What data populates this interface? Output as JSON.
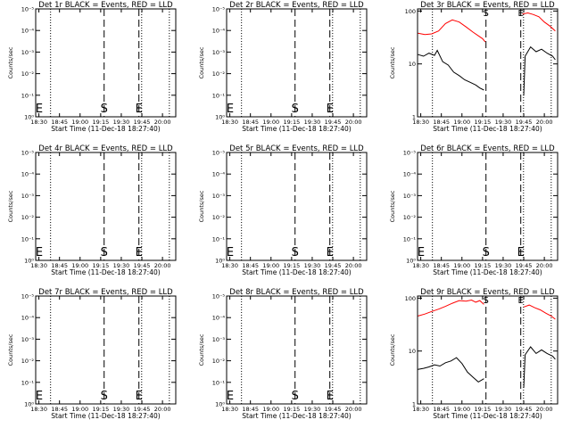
{
  "figure": {
    "xlabel": "Start Time (11-Dec-18 18:27:40)",
    "ylabel": "Counts/sec",
    "x_range": [
      "18:27:40",
      "20:09:40"
    ],
    "x_ticks": [
      "18:30",
      "18:45",
      "19:00",
      "19:15",
      "19:30",
      "19:45",
      "20:00"
    ],
    "vlines": [
      {
        "kind": "dotted",
        "time": "18:38:30"
      },
      {
        "kind": "dashed",
        "time": "19:17:30",
        "marker": "S"
      },
      {
        "kind": "dashed",
        "time": "19:42:50",
        "marker": "E"
      },
      {
        "kind": "dotted",
        "time": "19:44:50"
      },
      {
        "kind": "dotted",
        "time": "20:05:00"
      }
    ],
    "colors": {
      "events": "#000000",
      "lld": "#ff0000",
      "axes": "#000000"
    }
  },
  "chart_data": [
    {
      "type": "line",
      "title": "Det 1r BLACK = Events, RED = LLD",
      "ylabel": "Counts/sec",
      "xlabel": "Start Time (11-Dec-18 18:27:40)",
      "yscale": "log",
      "y_ticks": [
        "10⁰",
        "10⁻¹",
        "10⁻²",
        "10⁻³",
        "10⁻⁴",
        "10⁻⁵"
      ],
      "y_tick_exponents": [
        0,
        -1,
        -2,
        -3,
        -4,
        -5
      ],
      "ylim_exp": [
        0,
        -5
      ],
      "series": []
    },
    {
      "type": "line",
      "title": "Det 2r BLACK = Events, RED = LLD",
      "ylabel": "Counts/sec",
      "xlabel": "Start Time (11-Dec-18 18:27:40)",
      "yscale": "log",
      "y_ticks": [
        "10⁰",
        "10⁻¹",
        "10⁻²",
        "10⁻³",
        "10⁻⁴",
        "10⁻⁵"
      ],
      "y_tick_exponents": [
        0,
        -1,
        -2,
        -3,
        -4,
        -5
      ],
      "ylim_exp": [
        0,
        -5
      ],
      "series": []
    },
    {
      "type": "line",
      "title": "Det 3r BLACK = Events, RED = LLD",
      "ylabel": "Counts/sec",
      "xlabel": "Start Time (11-Dec-18 18:27:40)",
      "yscale": "log",
      "y_ticks": [
        "1",
        "10",
        "100"
      ],
      "y_tick_exponents": [
        0,
        1,
        2
      ],
      "ylim_exp": [
        0,
        2.04
      ],
      "series": [
        {
          "color": "#ff0000",
          "segments": [
            {
              "x": [
                "18:28",
                "18:33",
                "18:38",
                "18:43",
                "18:48",
                "18:53",
                "18:58",
                "19:03",
                "19:08",
                "19:12",
                "19:15",
                "19:17"
              ],
              "y": [
                38,
                36,
                37,
                42,
                58,
                68,
                62,
                50,
                40,
                34,
                30,
                26
              ]
            },
            {
              "x": [
                "19:44",
                "19:48",
                "19:52",
                "19:56",
                "20:00",
                "20:04",
                "20:08"
              ],
              "y": [
                88,
                92,
                86,
                78,
                62,
                52,
                42
              ]
            }
          ]
        },
        {
          "color": "#000000",
          "segments": [
            {
              "x": [
                "18:28",
                "18:32",
                "18:36",
                "18:40",
                "18:42",
                "18:46",
                "18:50",
                "18:54",
                "18:58",
                "19:02",
                "19:06",
                "19:10",
                "19:13",
                "19:16"
              ],
              "y": [
                15,
                14,
                16,
                14.5,
                18,
                11,
                9.5,
                7,
                6,
                5,
                4.5,
                4,
                3.5,
                3.2
              ]
            },
            {
              "x": [
                "19:45",
                "19:46",
                "19:50",
                "19:54",
                "19:58",
                "20:02",
                "20:06",
                "20:08"
              ],
              "y": [
                2.5,
                14,
                21,
                17,
                19,
                16,
                14,
                12
              ]
            }
          ]
        }
      ]
    },
    {
      "type": "line",
      "title": "Det 4r BLACK = Events, RED = LLD",
      "ylabel": "Counts/sec",
      "xlabel": "Start Time (11-Dec-18 18:27:40)",
      "yscale": "log",
      "y_ticks": [
        "10⁰",
        "10⁻¹",
        "10⁻²",
        "10⁻³",
        "10⁻⁴",
        "10⁻⁵"
      ],
      "y_tick_exponents": [
        0,
        -1,
        -2,
        -3,
        -4,
        -5
      ],
      "ylim_exp": [
        0,
        -5
      ],
      "series": []
    },
    {
      "type": "line",
      "title": "Det 5r BLACK = Events, RED = LLD",
      "ylabel": "Counts/sec",
      "xlabel": "Start Time (11-Dec-18 18:27:40)",
      "yscale": "log",
      "y_ticks": [
        "10⁰",
        "10⁻¹",
        "10⁻²",
        "10⁻³",
        "10⁻⁴",
        "10⁻⁵"
      ],
      "y_tick_exponents": [
        0,
        -1,
        -2,
        -3,
        -4,
        -5
      ],
      "ylim_exp": [
        0,
        -5
      ],
      "series": []
    },
    {
      "type": "line",
      "title": "Det 6r BLACK = Events, RED = LLD",
      "ylabel": "Counts/sec",
      "xlabel": "Start Time (11-Dec-18 18:27:40)",
      "yscale": "log",
      "y_ticks": [
        "10⁰",
        "10⁻¹",
        "10⁻²",
        "10⁻³",
        "10⁻⁴",
        "10⁻⁵"
      ],
      "y_tick_exponents": [
        0,
        -1,
        -2,
        -3,
        -4,
        -5
      ],
      "ylim_exp": [
        0,
        -5
      ],
      "series": []
    },
    {
      "type": "line",
      "title": "Det 7r BLACK = Events, RED = LLD",
      "ylabel": "Counts/sec",
      "xlabel": "Start Time (11-Dec-18 18:27:40)",
      "yscale": "log",
      "y_ticks": [
        "10⁰",
        "10⁻¹",
        "10⁻²",
        "10⁻³",
        "10⁻⁴",
        "10⁻⁵"
      ],
      "y_tick_exponents": [
        0,
        -1,
        -2,
        -3,
        -4,
        -5
      ],
      "ylim_exp": [
        0,
        -5
      ],
      "series": []
    },
    {
      "type": "line",
      "title": "Det 8r BLACK = Events, RED = LLD",
      "ylabel": "Counts/sec",
      "xlabel": "Start Time (11-Dec-18 18:27:40)",
      "yscale": "log",
      "y_ticks": [
        "10⁰",
        "10⁻¹",
        "10⁻²",
        "10⁻³",
        "10⁻⁴",
        "10⁻⁵"
      ],
      "y_tick_exponents": [
        0,
        -1,
        -2,
        -3,
        -4,
        -5
      ],
      "ylim_exp": [
        0,
        -5
      ],
      "series": []
    },
    {
      "type": "line",
      "title": "Det 9r BLACK = Events, RED = LLD",
      "ylabel": "Counts/sec",
      "xlabel": "Start Time (11-Dec-18 18:27:40)",
      "yscale": "log",
      "y_ticks": [
        "1",
        "10",
        "100"
      ],
      "y_tick_exponents": [
        0,
        1,
        2
      ],
      "ylim_exp": [
        0,
        2.04
      ],
      "series": [
        {
          "color": "#ff0000",
          "segments": [
            {
              "x": [
                "18:28",
                "18:33",
                "18:38",
                "18:43",
                "18:48",
                "18:53",
                "18:58",
                "19:03",
                "19:07",
                "19:10",
                "19:13",
                "19:16"
              ],
              "y": [
                46,
                50,
                56,
                62,
                70,
                80,
                90,
                88,
                92,
                84,
                90,
                76
              ]
            },
            {
              "x": [
                "19:45",
                "19:49",
                "19:53",
                "19:57",
                "20:01",
                "20:05",
                "20:08"
              ],
              "y": [
                68,
                74,
                66,
                60,
                52,
                46,
                40
              ]
            }
          ]
        },
        {
          "color": "#000000",
          "segments": [
            {
              "x": [
                "18:28",
                "18:32",
                "18:36",
                "18:40",
                "18:44",
                "18:48",
                "18:52",
                "18:56",
                "19:00",
                "19:04",
                "19:08",
                "19:12",
                "19:16"
              ],
              "y": [
                4.5,
                4.7,
                5.0,
                5.5,
                5.2,
                6.0,
                6.5,
                7.5,
                5.8,
                4.0,
                3.2,
                2.6,
                3.0
              ]
            },
            {
              "x": [
                "19:45",
                "19:46",
                "19:50",
                "19:54",
                "19:58",
                "20:02",
                "20:06",
                "20:08"
              ],
              "y": [
                2.0,
                8.5,
                12,
                9.0,
                10.5,
                9.0,
                8.0,
                7.0
              ]
            }
          ]
        }
      ]
    }
  ]
}
